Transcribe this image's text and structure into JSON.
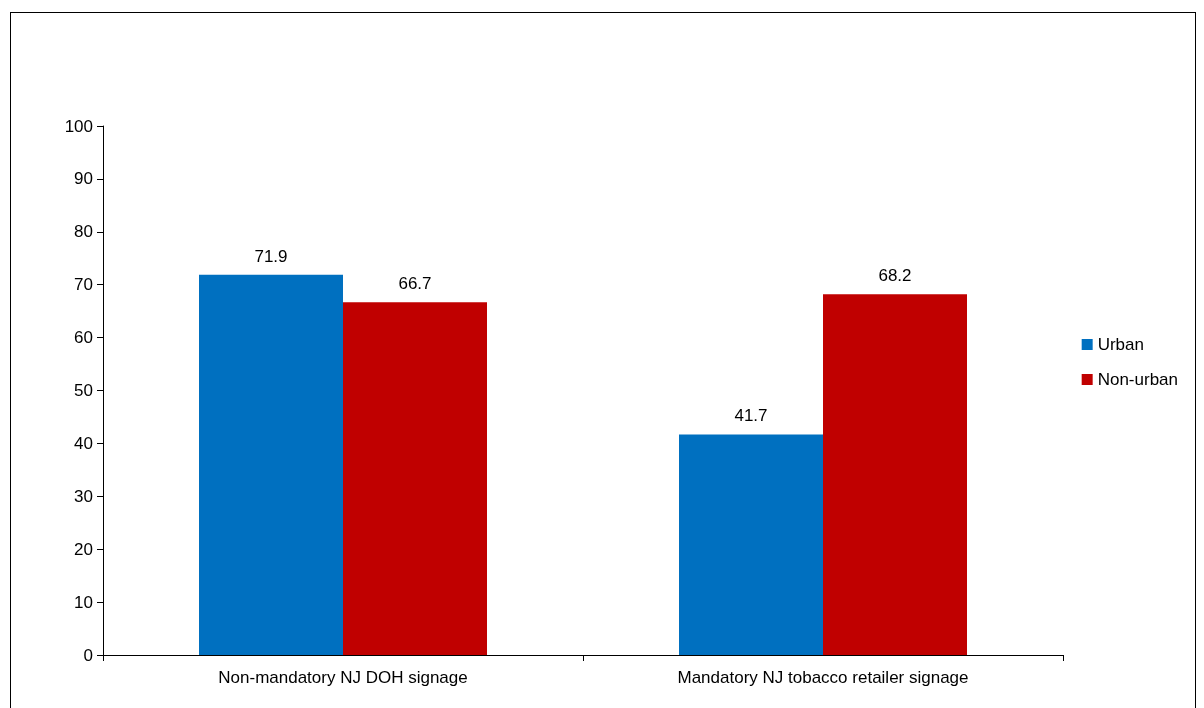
{
  "chart_data": {
    "type": "bar",
    "categories": [
      "Non-mandatory NJ DOH signage",
      "Mandatory NJ tobacco retailer signage"
    ],
    "series": [
      {
        "name": "Urban",
        "color": "#0070c0",
        "values": [
          71.9,
          41.7
        ]
      },
      {
        "name": "Non-urban",
        "color": "#c00000",
        "values": [
          66.7,
          68.2
        ]
      }
    ],
    "ylim": [
      0,
      100
    ],
    "yticks": [
      0,
      10,
      20,
      30,
      40,
      50,
      60,
      70,
      80,
      90,
      100
    ],
    "grid": false,
    "legend": "right",
    "data_labels": true
  }
}
